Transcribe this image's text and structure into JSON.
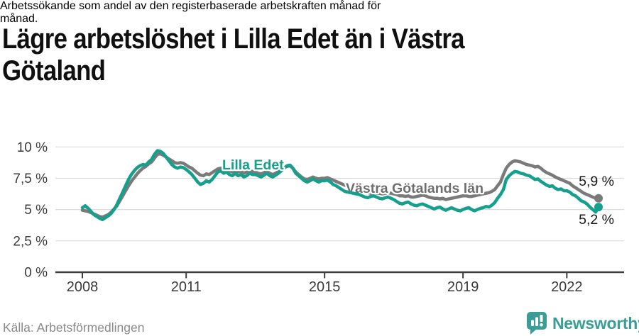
{
  "header": {
    "title": "Lägre arbetslöshet i Lilla Edet än i Västra Götaland",
    "title_lines": [
      "Lägre arbetslöshet i Lilla Edet än i Västra",
      "Götaland"
    ],
    "subtitle": "Arbetssökande som andel av den registerbaserade arbetskraften månad för månad.",
    "subtitle_lines": [
      "Arbetssökande som andel av den registerbaserade arbetskraften månad för",
      "månad."
    ]
  },
  "chart_data": {
    "type": "line",
    "unit": "%",
    "x_period": {
      "start": "2008-01",
      "end": "2022-12",
      "frequency": "monthly"
    },
    "start_year": 2008,
    "x_ticks": [
      2008,
      2011,
      2015,
      2019,
      2022
    ],
    "y_ticks": [
      {
        "label": "0 %",
        "value": 0
      },
      {
        "label": "2,5 %",
        "value": 2.5
      },
      {
        "label": "5 %",
        "value": 5
      },
      {
        "label": "7,5 %",
        "value": 7.5
      },
      {
        "label": "10 %",
        "value": 10
      }
    ],
    "ylim": [
      0,
      10
    ],
    "grid": "horizontal",
    "series": [
      {
        "id": "vastra-gotalands-lan",
        "name": "Västra Götalands län",
        "color": "#7a7a7a",
        "label_color": "#6e6e6e",
        "end_label": "5,9 %",
        "end_value": 5.9,
        "values": [
          4.95,
          4.9,
          4.85,
          4.75,
          4.65,
          4.55,
          4.45,
          4.4,
          4.5,
          4.6,
          4.8,
          5.05,
          5.3,
          5.7,
          6.1,
          6.5,
          6.9,
          7.25,
          7.55,
          7.85,
          8.1,
          8.3,
          8.45,
          8.65,
          8.8,
          9.1,
          9.4,
          9.45,
          9.35,
          9.2,
          9.05,
          8.9,
          8.75,
          8.7,
          8.75,
          8.7,
          8.55,
          8.4,
          8.3,
          8.1,
          7.9,
          7.75,
          7.7,
          7.85,
          7.8,
          7.95,
          8.1,
          8.25,
          8.3,
          8.15,
          8.25,
          8.1,
          8.0,
          8.15,
          8.0,
          8.05,
          7.9,
          8.0,
          8.1,
          8.05,
          8.0,
          7.9,
          7.85,
          7.95,
          8.05,
          7.9,
          7.8,
          7.9,
          8.05,
          8.2,
          8.35,
          8.45,
          8.5,
          8.3,
          8.0,
          7.8,
          7.6,
          7.45,
          7.4,
          7.5,
          7.6,
          7.5,
          7.45,
          7.5,
          7.5,
          7.55,
          7.45,
          7.35,
          7.25,
          7.15,
          7.05,
          6.95,
          6.85,
          6.75,
          6.7,
          6.6,
          6.55,
          6.5,
          6.4,
          6.35,
          6.3,
          6.4,
          6.3,
          6.3,
          6.25,
          6.3,
          6.35,
          6.3,
          6.25,
          6.2,
          6.1,
          6.1,
          6.05,
          6.1,
          6.0,
          6.0,
          6.05,
          6.1,
          6.15,
          6.1,
          6.0,
          5.95,
          5.9,
          5.9,
          5.85,
          5.9,
          5.8,
          5.85,
          5.9,
          5.95,
          6.0,
          6.05,
          6.1,
          6.1,
          6.05,
          6.05,
          6.1,
          6.15,
          6.2,
          6.25,
          6.3,
          6.35,
          6.45,
          6.6,
          6.9,
          7.2,
          7.8,
          8.3,
          8.6,
          8.8,
          8.9,
          8.85,
          8.8,
          8.7,
          8.6,
          8.55,
          8.5,
          8.4,
          8.45,
          8.3,
          8.1,
          7.95,
          7.85,
          7.75,
          7.6,
          7.5,
          7.4,
          7.3,
          7.2,
          7.1,
          6.9,
          6.75,
          6.6,
          6.45,
          6.3,
          6.2,
          6.1,
          6.0,
          5.9,
          5.9
        ]
      },
      {
        "id": "lilla-edet",
        "name": "Lilla Edet",
        "color": "#14a08c",
        "label_color": "#14a08c",
        "end_label": "5,2 %",
        "end_value": 5.2,
        "values": [
          5.15,
          5.3,
          5.1,
          4.85,
          4.6,
          4.45,
          4.3,
          4.2,
          4.35,
          4.5,
          4.7,
          5.0,
          5.4,
          5.9,
          6.4,
          6.9,
          7.4,
          7.8,
          8.1,
          8.35,
          8.5,
          8.6,
          8.55,
          8.8,
          9.0,
          9.4,
          9.7,
          9.65,
          9.5,
          9.2,
          8.9,
          8.6,
          8.4,
          8.3,
          8.4,
          8.35,
          8.2,
          8.0,
          7.8,
          7.5,
          7.2,
          7.0,
          7.1,
          7.3,
          7.2,
          7.4,
          7.7,
          8.0,
          8.1,
          7.9,
          8.0,
          7.8,
          7.7,
          7.9,
          7.7,
          7.8,
          7.6,
          7.7,
          7.9,
          7.8,
          7.8,
          7.7,
          7.6,
          7.75,
          7.9,
          7.7,
          7.6,
          7.75,
          7.9,
          8.1,
          8.3,
          8.5,
          8.55,
          8.3,
          7.9,
          7.7,
          7.5,
          7.3,
          7.2,
          7.3,
          7.45,
          7.3,
          7.2,
          7.3,
          7.3,
          7.35,
          7.2,
          7.0,
          6.9,
          6.75,
          6.6,
          6.45,
          6.4,
          6.35,
          6.3,
          6.25,
          6.2,
          6.1,
          6.0,
          5.95,
          6.05,
          6.1,
          6.0,
          5.9,
          5.85,
          5.95,
          6.0,
          5.9,
          5.8,
          5.65,
          5.5,
          5.45,
          5.55,
          5.6,
          5.45,
          5.35,
          5.3,
          5.4,
          5.45,
          5.35,
          5.25,
          5.15,
          5.05,
          5.15,
          5.2,
          5.05,
          4.95,
          5.05,
          5.15,
          5.05,
          4.95,
          4.9,
          5.0,
          5.1,
          5.15,
          5.0,
          4.9,
          5.0,
          5.1,
          5.15,
          5.25,
          5.2,
          5.35,
          5.55,
          5.9,
          6.2,
          6.6,
          7.4,
          7.7,
          7.9,
          8.05,
          8.0,
          7.9,
          7.85,
          7.75,
          7.7,
          7.55,
          7.4,
          7.45,
          7.25,
          7.1,
          6.95,
          6.85,
          6.9,
          6.7,
          6.6,
          6.65,
          6.5,
          6.5,
          6.4,
          6.2,
          6.1,
          5.9,
          5.7,
          5.6,
          5.45,
          5.2,
          5.0,
          4.8,
          5.2
        ]
      }
    ]
  },
  "footer": {
    "source": "Källa: Arbetsförmedlingen",
    "brand": "Newsworthy"
  },
  "colors": {
    "lilla_edet": "#14a08c",
    "vastra_gotaland": "#7a7a7a",
    "axis": "#3d3d3d",
    "grid": "#dbdbdb",
    "brand_teal": "#3a9e96"
  }
}
